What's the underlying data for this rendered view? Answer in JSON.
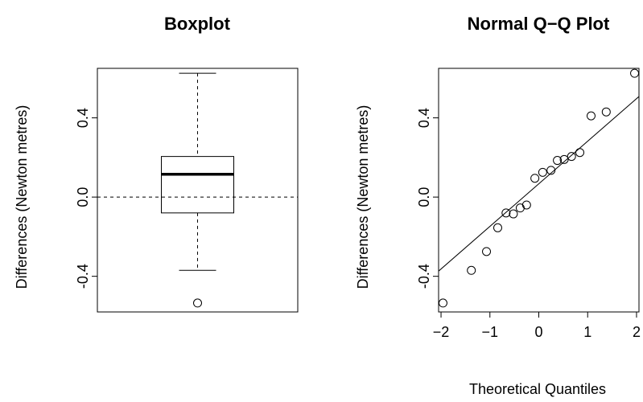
{
  "chart_data": [
    {
      "type": "boxplot",
      "title": "Boxplot",
      "xlabel": "",
      "ylabel": "Differences (Newton metres)",
      "ylim": [
        -0.58,
        0.65
      ],
      "yticks": [
        -0.4,
        0.0,
        0.4
      ],
      "ytick_labels": [
        "-0.4",
        "0.0",
        "0.4"
      ],
      "stats": {
        "whisker_low": -0.37,
        "q1": -0.08,
        "median": 0.115,
        "q3": 0.205,
        "whisker_high": 0.625
      },
      "outliers": [
        -0.535
      ],
      "reference_line": {
        "y": 0.0,
        "style": "dashed"
      }
    },
    {
      "type": "scatter",
      "title": "Normal Q−Q Plot",
      "xlabel": "Theoretical Quantiles",
      "ylabel": "Differences (Newton metres)",
      "xlim": [
        -2.05,
        2.05
      ],
      "ylim": [
        -0.58,
        0.65
      ],
      "xticks": [
        -2,
        -1,
        0,
        1,
        2
      ],
      "xtick_labels": [
        "−2",
        "−1",
        "0",
        "1",
        "2"
      ],
      "yticks": [
        -0.4,
        0.0,
        0.4
      ],
      "ytick_labels": [
        "-0.4",
        "0.0",
        "0.4"
      ],
      "points": [
        {
          "x": -1.96,
          "y": -0.535
        },
        {
          "x": -1.38,
          "y": -0.37
        },
        {
          "x": -1.07,
          "y": -0.275
        },
        {
          "x": -0.84,
          "y": -0.155
        },
        {
          "x": -0.67,
          "y": -0.08
        },
        {
          "x": -0.52,
          "y": -0.085
        },
        {
          "x": -0.38,
          "y": -0.055
        },
        {
          "x": -0.25,
          "y": -0.04
        },
        {
          "x": -0.08,
          "y": 0.095
        },
        {
          "x": 0.08,
          "y": 0.125
        },
        {
          "x": 0.25,
          "y": 0.135
        },
        {
          "x": 0.38,
          "y": 0.185
        },
        {
          "x": 0.52,
          "y": 0.19
        },
        {
          "x": 0.67,
          "y": 0.205
        },
        {
          "x": 0.84,
          "y": 0.225
        },
        {
          "x": 1.07,
          "y": 0.41
        },
        {
          "x": 1.38,
          "y": 0.43
        },
        {
          "x": 1.96,
          "y": 0.625
        }
      ],
      "reference_line": {
        "intercept": 0.067,
        "slope": 0.215
      }
    }
  ]
}
